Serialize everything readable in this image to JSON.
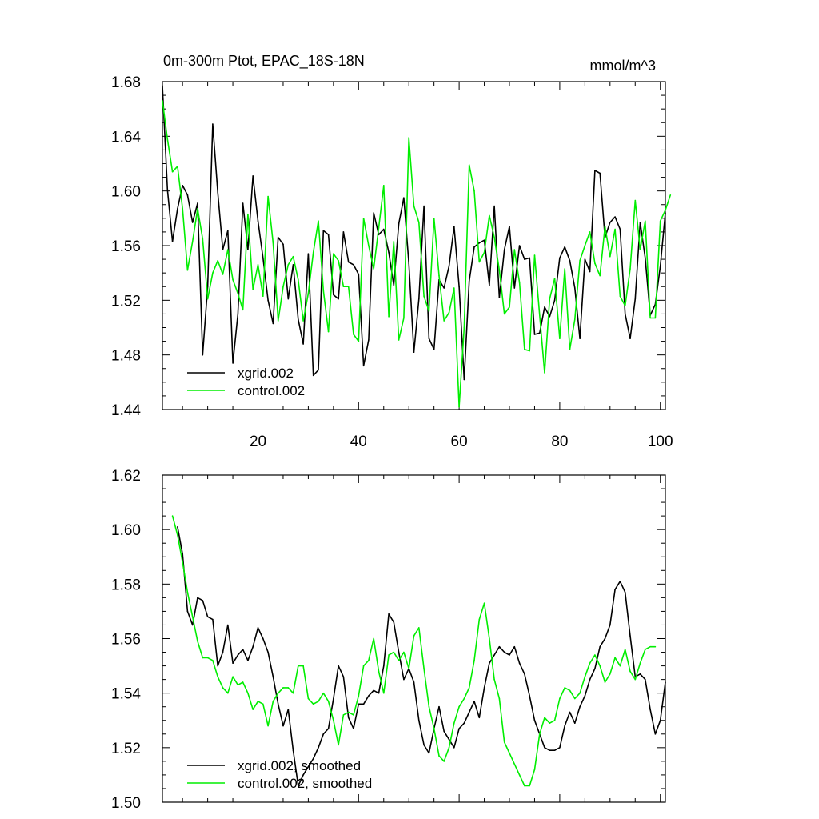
{
  "colors": {
    "xgrid": "#000000",
    "control": "#00ee00"
  },
  "chart_data": [
    {
      "type": "line",
      "title": "0m-300m Ptot, EPAC_18S-18N",
      "units": "mmol/m^3",
      "xlim": [
        1,
        101
      ],
      "ylim": [
        1.44,
        1.68
      ],
      "yticks": [
        "1.44",
        "1.48",
        "1.52",
        "1.56",
        "1.60",
        "1.64",
        "1.68"
      ],
      "xticks": [
        "20",
        "40",
        "60",
        "80",
        "100"
      ],
      "legend_position": "bottom-left",
      "series": [
        {
          "name": "xgrid.002",
          "x_start": 1,
          "values": [
            1.677,
            1.601,
            1.563,
            1.587,
            1.604,
            1.597,
            1.577,
            1.591,
            1.48,
            1.53,
            1.649,
            1.599,
            1.557,
            1.571,
            1.474,
            1.51,
            1.591,
            1.557,
            1.611,
            1.578,
            1.551,
            1.52,
            1.503,
            1.566,
            1.561,
            1.521,
            1.546,
            1.506,
            1.488,
            1.554,
            1.465,
            1.469,
            1.571,
            1.568,
            1.524,
            1.521,
            1.57,
            1.548,
            1.546,
            1.539,
            1.472,
            1.491,
            1.584,
            1.568,
            1.572,
            1.555,
            1.531,
            1.576,
            1.595,
            1.547,
            1.482,
            1.521,
            1.589,
            1.492,
            1.484,
            1.535,
            1.529,
            1.545,
            1.574,
            1.53,
            1.462,
            1.534,
            1.559,
            1.562,
            1.564,
            1.531,
            1.589,
            1.522,
            1.557,
            1.574,
            1.529,
            1.56,
            1.55,
            1.551,
            1.495,
            1.496,
            1.515,
            1.508,
            1.52,
            1.551,
            1.559,
            1.549,
            1.529,
            1.492,
            1.55,
            1.541,
            1.615,
            1.613,
            1.566,
            1.577,
            1.581,
            1.572,
            1.51,
            1.492,
            1.521,
            1.577,
            1.551,
            1.509,
            1.517,
            1.545,
            1.584
          ]
        },
        {
          "name": "control.002",
          "x_start": 1,
          "values": [
            1.666,
            1.638,
            1.614,
            1.618,
            1.587,
            1.542,
            1.563,
            1.587,
            1.565,
            1.521,
            1.54,
            1.549,
            1.539,
            1.557,
            1.535,
            1.525,
            1.513,
            1.583,
            1.528,
            1.546,
            1.523,
            1.596,
            1.562,
            1.505,
            1.53,
            1.546,
            1.552,
            1.535,
            1.505,
            1.525,
            1.555,
            1.578,
            1.527,
            1.497,
            1.554,
            1.549,
            1.53,
            1.53,
            1.495,
            1.49,
            1.58,
            1.56,
            1.543,
            1.573,
            1.604,
            1.508,
            1.563,
            1.491,
            1.507,
            1.639,
            1.589,
            1.577,
            1.523,
            1.512,
            1.58,
            1.538,
            1.505,
            1.511,
            1.529,
            1.442,
            1.5,
            1.619,
            1.6,
            1.548,
            1.555,
            1.582,
            1.566,
            1.542,
            1.51,
            1.515,
            1.557,
            1.533,
            1.484,
            1.483,
            1.553,
            1.509,
            1.467,
            1.521,
            1.536,
            1.492,
            1.543,
            1.484,
            1.506,
            1.549,
            1.56,
            1.57,
            1.547,
            1.538,
            1.574,
            1.552,
            1.572,
            1.523,
            1.516,
            1.543,
            1.593,
            1.557,
            1.578,
            1.507,
            1.507,
            1.578,
            1.586,
            1.597
          ]
        }
      ]
    },
    {
      "type": "line",
      "xlim": [
        1,
        101
      ],
      "ylim": [
        1.5,
        1.62
      ],
      "yticks": [
        "1.50",
        "1.52",
        "1.54",
        "1.56",
        "1.58",
        "1.60",
        "1.62"
      ],
      "legend_position": "bottom-left",
      "series": [
        {
          "name": "xgrid.002, smoothed",
          "x_start": 4,
          "values": [
            1.601,
            1.591,
            1.57,
            1.565,
            1.575,
            1.574,
            1.568,
            1.567,
            1.55,
            1.555,
            1.565,
            1.551,
            1.554,
            1.556,
            1.552,
            1.557,
            1.564,
            1.56,
            1.555,
            1.546,
            1.536,
            1.528,
            1.534,
            1.519,
            1.506,
            1.51,
            1.513,
            1.516,
            1.52,
            1.525,
            1.527,
            1.538,
            1.55,
            1.546,
            1.531,
            1.527,
            1.536,
            1.536,
            1.539,
            1.541,
            1.54,
            1.55,
            1.569,
            1.566,
            1.555,
            1.545,
            1.549,
            1.544,
            1.53,
            1.521,
            1.518,
            1.527,
            1.535,
            1.526,
            1.523,
            1.52,
            1.527,
            1.529,
            1.533,
            1.537,
            1.531,
            1.542,
            1.551,
            1.554,
            1.557,
            1.555,
            1.554,
            1.557,
            1.551,
            1.547,
            1.539,
            1.53,
            1.525,
            1.52,
            1.519,
            1.519,
            1.52,
            1.528,
            1.533,
            1.529,
            1.535,
            1.539,
            1.545,
            1.549,
            1.557,
            1.56,
            1.565,
            1.578,
            1.581,
            1.577,
            1.561,
            1.546,
            1.547,
            1.545,
            1.534,
            1.525,
            1.53,
            1.544
          ]
        },
        {
          "name": "control.002, smoothed",
          "x_start": 3,
          "values": [
            1.605,
            1.598,
            1.588,
            1.577,
            1.568,
            1.559,
            1.553,
            1.553,
            1.552,
            1.546,
            1.542,
            1.54,
            1.546,
            1.543,
            1.544,
            1.54,
            1.534,
            1.537,
            1.536,
            1.528,
            1.537,
            1.54,
            1.542,
            1.542,
            1.54,
            1.55,
            1.55,
            1.538,
            1.536,
            1.537,
            1.54,
            1.537,
            1.53,
            1.521,
            1.532,
            1.533,
            1.532,
            1.539,
            1.55,
            1.552,
            1.56,
            1.548,
            1.54,
            1.554,
            1.555,
            1.552,
            1.555,
            1.549,
            1.561,
            1.564,
            1.549,
            1.535,
            1.527,
            1.517,
            1.515,
            1.52,
            1.529,
            1.535,
            1.538,
            1.542,
            1.552,
            1.567,
            1.573,
            1.56,
            1.545,
            1.538,
            1.522,
            1.518,
            1.514,
            1.51,
            1.506,
            1.506,
            1.512,
            1.525,
            1.531,
            1.529,
            1.53,
            1.538,
            1.542,
            1.541,
            1.538,
            1.54,
            1.546,
            1.551,
            1.554,
            1.55,
            1.544,
            1.547,
            1.553,
            1.55,
            1.556,
            1.548,
            1.545,
            1.551,
            1.556,
            1.557,
            1.557
          ]
        }
      ]
    }
  ]
}
